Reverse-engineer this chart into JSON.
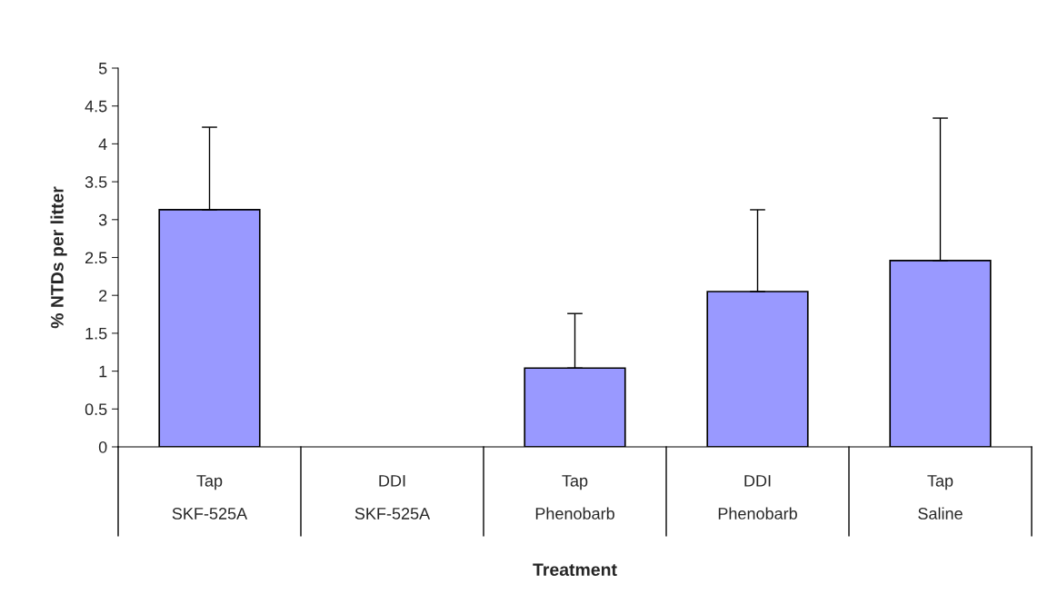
{
  "chart_data": {
    "type": "bar",
    "categories": [
      "Tap\nSKF-525A",
      "DDI\nSKF-525A",
      "Tap\nPhenobarb",
      "DDI\nPhenobarb",
      "Tap\nSaline"
    ],
    "values": [
      3.13,
      null,
      1.04,
      2.05,
      2.46
    ],
    "errors": [
      [
        3.13,
        4.22
      ],
      null,
      [
        1.04,
        1.76
      ],
      [
        2.05,
        3.13
      ],
      [
        2.46,
        4.34
      ]
    ],
    "color": "#9999ff",
    "xlabel": "Treatment",
    "ylabel": "% NTDs per litter",
    "ylim": [
      0,
      5
    ],
    "yticks": [
      0,
      0.5,
      1,
      1.5,
      2,
      2.5,
      3,
      3.5,
      4,
      4.5,
      5
    ],
    "grid": false,
    "legend": false
  }
}
